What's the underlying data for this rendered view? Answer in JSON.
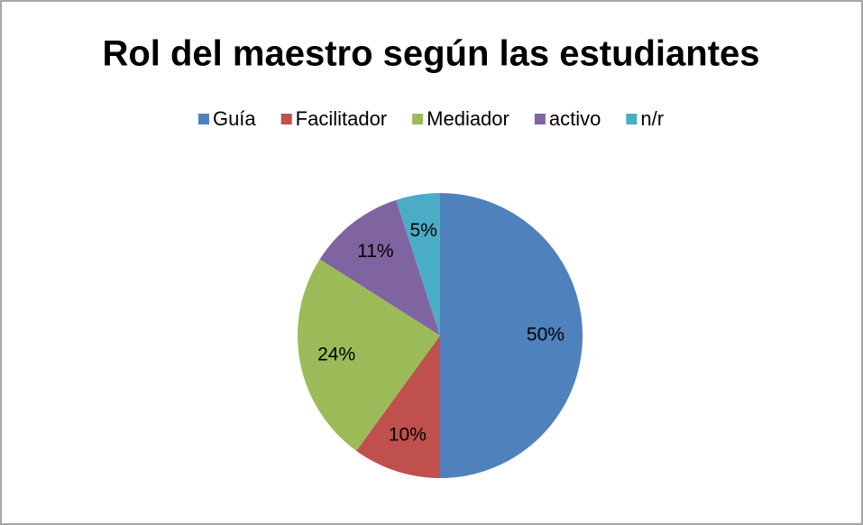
{
  "chart_data": {
    "type": "pie",
    "title": "Rol del maestro según las estudiantes",
    "categories": [
      "Guía",
      "Facilitador",
      "Mediador",
      "activo",
      "n/r"
    ],
    "values": [
      50,
      10,
      24,
      11,
      5
    ],
    "value_labels": [
      "50%",
      "10%",
      "24%",
      "11%",
      "5%"
    ],
    "colors": [
      "#4f81bd",
      "#c0504d",
      "#9bbb59",
      "#8064a2",
      "#4bacc6"
    ],
    "legend": "top"
  }
}
